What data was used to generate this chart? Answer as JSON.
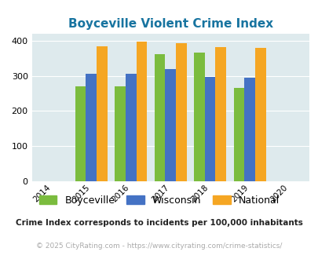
{
  "title": "Boyceville Violent Crime Index",
  "all_years": [
    2014,
    2015,
    2016,
    2017,
    2018,
    2019,
    2020
  ],
  "data_years": [
    2015,
    2016,
    2017,
    2018,
    2019
  ],
  "boyceville": [
    270,
    270,
    362,
    366,
    265
  ],
  "wisconsin": [
    307,
    307,
    320,
    296,
    294
  ],
  "national": [
    384,
    398,
    394,
    381,
    379
  ],
  "color_boyceville": "#7bbc3e",
  "color_wisconsin": "#4472c4",
  "color_national": "#f5a623",
  "bg_color": "#deeaed",
  "ylim": [
    0,
    420
  ],
  "yticks": [
    0,
    100,
    200,
    300,
    400
  ],
  "bar_width": 0.27,
  "subtitle": "Crime Index corresponds to incidents per 100,000 inhabitants",
  "footer": "© 2025 CityRating.com - https://www.cityrating.com/crime-statistics/",
  "title_color": "#1874a0",
  "subtitle_color": "#222222",
  "footer_color": "#aaaaaa",
  "legend_labels": [
    "Boyceville",
    "Wisconsin",
    "National"
  ]
}
